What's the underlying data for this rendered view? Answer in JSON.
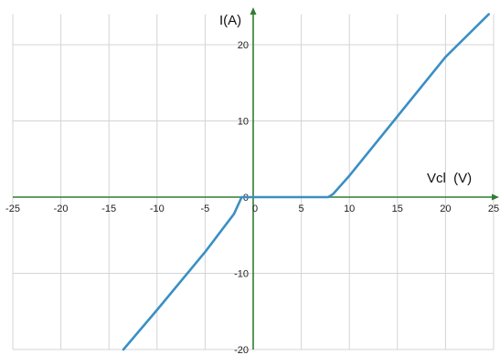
{
  "chart_data": {
    "type": "line",
    "xlabel": "Vcl  (V)",
    "ylabel": "I(A)",
    "xlim": [
      -25,
      25
    ],
    "ylim": [
      -20,
      24
    ],
    "grid": true,
    "x_ticks": [
      "-25",
      "-20",
      "-15",
      "-10",
      "-5",
      "0",
      "5",
      "10",
      "15",
      "20",
      "25"
    ],
    "y_ticks": [
      "-20",
      "-10",
      "0",
      "10",
      "20"
    ],
    "series": [
      {
        "x": [
          -13.5,
          -10,
          -5,
          -2,
          -1.2,
          0,
          5,
          7.8,
          8.3,
          10,
          15,
          20,
          24.5
        ],
        "y": [
          -20,
          -14.8,
          -7.2,
          -2.2,
          0,
          0,
          0,
          0,
          0.4,
          2.8,
          10.6,
          18.4,
          24
        ]
      }
    ],
    "colors": {
      "series": "#3a8fc4",
      "axes": "#2e7d32",
      "grid": "#d4d4d4"
    }
  }
}
